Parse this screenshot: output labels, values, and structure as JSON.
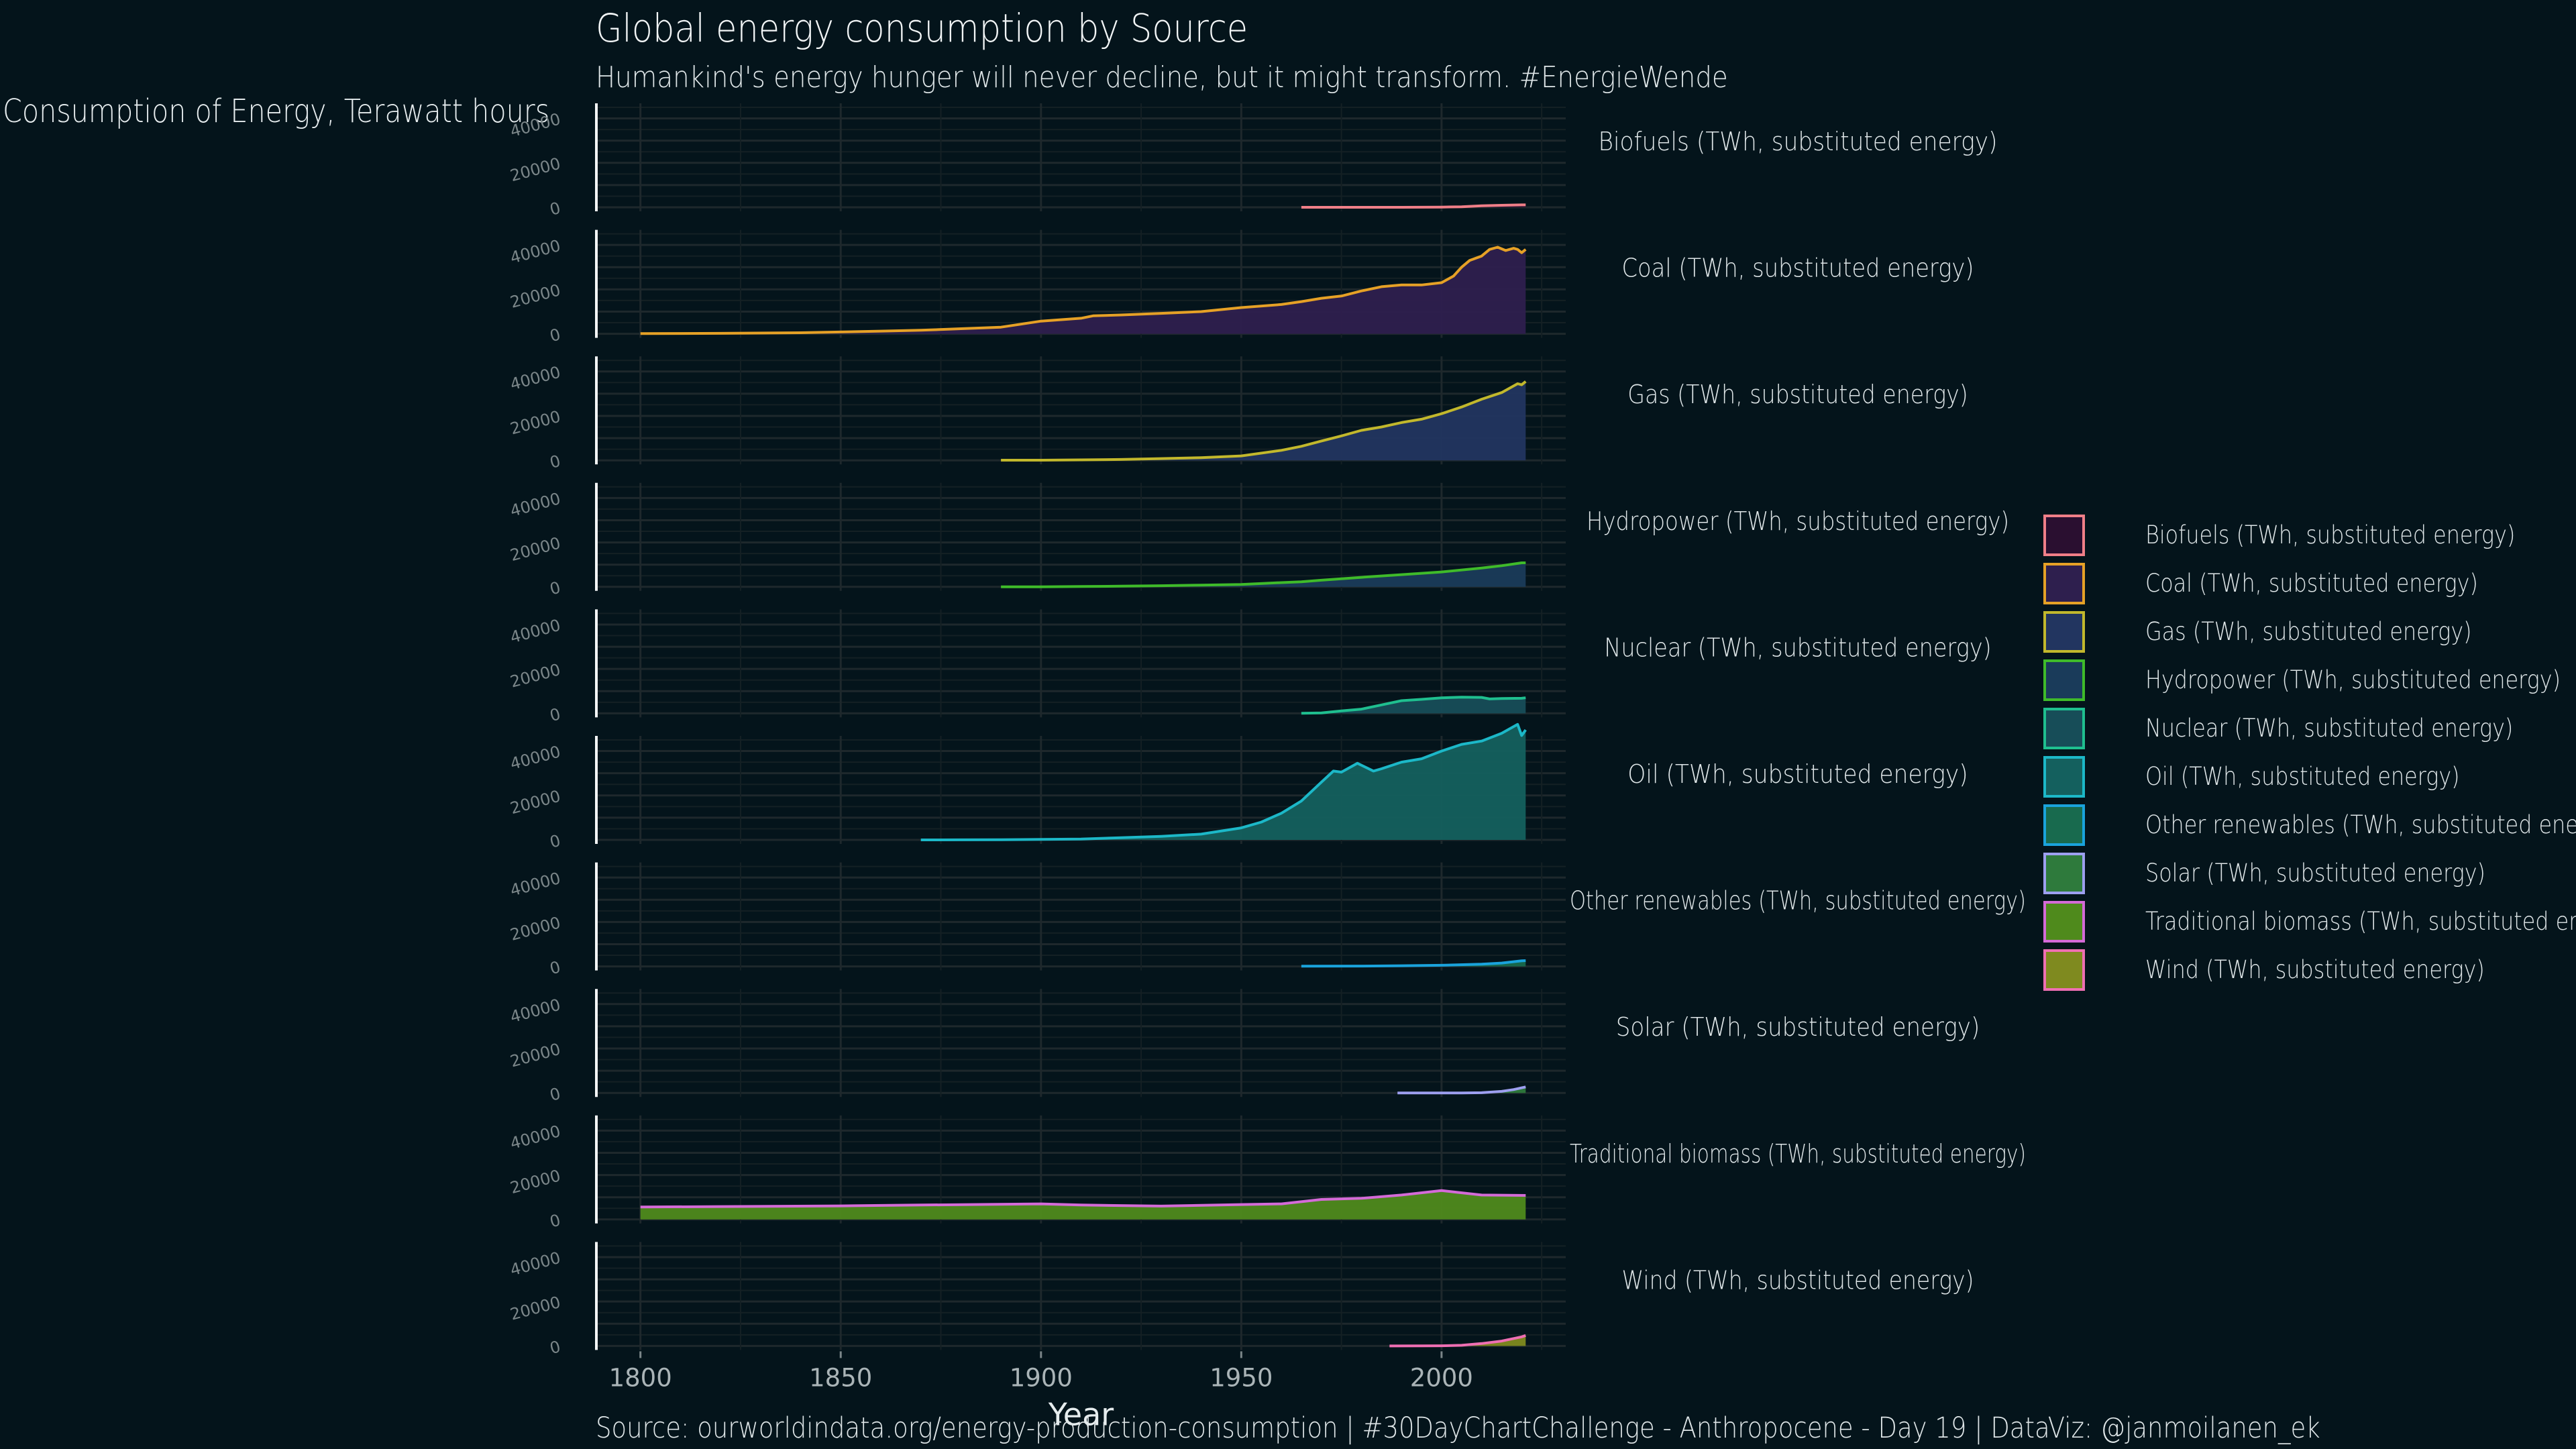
{
  "chart_data": {
    "type": "area",
    "title": "Global energy consumption by Source",
    "subtitle": "Humankind's energy hunger will never decline, but it might transform. #EnergieWende",
    "ylabel": "Consumption of Energy, Terawatt hours",
    "xlabel": "Year",
    "caption": "Source: ourworldindata.org/energy-production-consumption | #30DayChartChallenge - Anthropocene - Day 19  |  DataViz: @janmoilanen_ek",
    "xlim": [
      1789,
      2031
    ],
    "ylim": [
      0,
      45000
    ],
    "x_ticks": [
      1800,
      1850,
      1900,
      1950,
      2000
    ],
    "y_ticks": [
      0,
      20000,
      40000
    ],
    "facets": "stacked vertically, shared x axis",
    "grid": true,
    "legend_position": "right",
    "series": [
      {
        "name": "Biofuels (TWh, substituted energy)",
        "line_color": "#f07f88",
        "fill_color": "#2a0f30",
        "points": [
          [
            1965,
            0
          ],
          [
            1980,
            0
          ],
          [
            1990,
            0
          ],
          [
            2000,
            100
          ],
          [
            2005,
            250
          ],
          [
            2010,
            700
          ],
          [
            2015,
            900
          ],
          [
            2020,
            1100
          ],
          [
            2021,
            1100
          ]
        ]
      },
      {
        "name": "Coal (TWh, substituted energy)",
        "line_color": "#e6a126",
        "fill_color": "#2e1f4e",
        "points": [
          [
            1800,
            97
          ],
          [
            1820,
            200
          ],
          [
            1840,
            480
          ],
          [
            1860,
            1200
          ],
          [
            1870,
            1600
          ],
          [
            1880,
            2300
          ],
          [
            1890,
            3000
          ],
          [
            1900,
            5700
          ],
          [
            1910,
            7000
          ],
          [
            1913,
            8100
          ],
          [
            1920,
            8500
          ],
          [
            1930,
            9200
          ],
          [
            1940,
            10000
          ],
          [
            1950,
            11800
          ],
          [
            1960,
            13200
          ],
          [
            1965,
            14500
          ],
          [
            1970,
            16000
          ],
          [
            1975,
            17000
          ],
          [
            1980,
            19300
          ],
          [
            1985,
            21200
          ],
          [
            1990,
            22000
          ],
          [
            1995,
            22000
          ],
          [
            2000,
            23000
          ],
          [
            2003,
            26000
          ],
          [
            2005,
            30000
          ],
          [
            2007,
            33000
          ],
          [
            2010,
            35000
          ],
          [
            2012,
            38000
          ],
          [
            2014,
            39000
          ],
          [
            2016,
            37500
          ],
          [
            2018,
            38500
          ],
          [
            2019,
            38000
          ],
          [
            2020,
            36500
          ],
          [
            2021,
            38000
          ]
        ]
      },
      {
        "name": "Gas (TWh, substituted energy)",
        "line_color": "#c2b82c",
        "fill_color": "#223560",
        "points": [
          [
            1890,
            60
          ],
          [
            1900,
            70
          ],
          [
            1910,
            200
          ],
          [
            1920,
            400
          ],
          [
            1930,
            800
          ],
          [
            1940,
            1200
          ],
          [
            1950,
            2000
          ],
          [
            1960,
            4500
          ],
          [
            1965,
            6300
          ],
          [
            1970,
            8700
          ],
          [
            1975,
            11000
          ],
          [
            1980,
            13500
          ],
          [
            1985,
            15000
          ],
          [
            1990,
            17000
          ],
          [
            1995,
            18500
          ],
          [
            2000,
            21000
          ],
          [
            2005,
            24000
          ],
          [
            2010,
            27500
          ],
          [
            2015,
            30500
          ],
          [
            2018,
            33500
          ],
          [
            2019,
            34500
          ],
          [
            2020,
            34000
          ],
          [
            2021,
            35500
          ]
        ]
      },
      {
        "name": "Hydropower (TWh, substituted energy)",
        "line_color": "#3fbb2a",
        "fill_color": "#1a3b5a",
        "points": [
          [
            1890,
            5
          ],
          [
            1900,
            40
          ],
          [
            1910,
            150
          ],
          [
            1920,
            300
          ],
          [
            1930,
            500
          ],
          [
            1940,
            800
          ],
          [
            1950,
            1100
          ],
          [
            1960,
            1900
          ],
          [
            1965,
            2300
          ],
          [
            1970,
            3000
          ],
          [
            1980,
            4300
          ],
          [
            1990,
            5500
          ],
          [
            2000,
            6700
          ],
          [
            2010,
            8500
          ],
          [
            2015,
            9500
          ],
          [
            2020,
            10800
          ],
          [
            2021,
            10800
          ]
        ]
      },
      {
        "name": "Nuclear (TWh, substituted energy)",
        "line_color": "#1fbf8f",
        "fill_color": "#174d58",
        "points": [
          [
            1965,
            70
          ],
          [
            1970,
            200
          ],
          [
            1975,
            1100
          ],
          [
            1980,
            1900
          ],
          [
            1985,
            3800
          ],
          [
            1990,
            5700
          ],
          [
            1995,
            6300
          ],
          [
            2000,
            7000
          ],
          [
            2005,
            7300
          ],
          [
            2010,
            7200
          ],
          [
            2012,
            6500
          ],
          [
            2015,
            6700
          ],
          [
            2020,
            6800
          ],
          [
            2021,
            7000
          ]
        ]
      },
      {
        "name": "Oil (TWh, substituted energy)",
        "line_color": "#1cb8c8",
        "fill_color": "#14605e",
        "points": [
          [
            1870,
            3
          ],
          [
            1880,
            30
          ],
          [
            1890,
            100
          ],
          [
            1900,
            200
          ],
          [
            1910,
            400
          ],
          [
            1920,
            1000
          ],
          [
            1930,
            1600
          ],
          [
            1940,
            2600
          ],
          [
            1950,
            5400
          ],
          [
            1955,
            8000
          ],
          [
            1960,
            12000
          ],
          [
            1965,
            17500
          ],
          [
            1970,
            26000
          ],
          [
            1973,
            31000
          ],
          [
            1975,
            30500
          ],
          [
            1979,
            34500
          ],
          [
            1983,
            31000
          ],
          [
            1985,
            32000
          ],
          [
            1990,
            35000
          ],
          [
            1995,
            36500
          ],
          [
            2000,
            40000
          ],
          [
            2005,
            43000
          ],
          [
            2010,
            44500
          ],
          [
            2015,
            48000
          ],
          [
            2019,
            52000
          ],
          [
            2020,
            47000
          ],
          [
            2021,
            49500
          ]
        ]
      },
      {
        "name": "Other renewables (TWh, substituted energy)",
        "line_color": "#1aa3dc",
        "fill_color": "#186a4e",
        "points": [
          [
            1965,
            100
          ],
          [
            1980,
            150
          ],
          [
            1990,
            300
          ],
          [
            2000,
            500
          ],
          [
            2010,
            1000
          ],
          [
            2015,
            1500
          ],
          [
            2020,
            2500
          ],
          [
            2021,
            2600
          ]
        ]
      },
      {
        "name": "Solar (TWh, substituted energy)",
        "line_color": "#9d9ff0",
        "fill_color": "#2e7a3c",
        "points": [
          [
            1989,
            1
          ],
          [
            2000,
            3
          ],
          [
            2005,
            15
          ],
          [
            2010,
            100
          ],
          [
            2015,
            700
          ],
          [
            2018,
            1500
          ],
          [
            2020,
            2300
          ],
          [
            2021,
            2700
          ]
        ]
      },
      {
        "name": "Traditional biomass (TWh, substituted energy)",
        "line_color": "#d46ad8",
        "fill_color": "#4f8a1c",
        "points": [
          [
            1800,
            5600
          ],
          [
            1820,
            5800
          ],
          [
            1850,
            6100
          ],
          [
            1870,
            6500
          ],
          [
            1900,
            7000
          ],
          [
            1910,
            6500
          ],
          [
            1930,
            6000
          ],
          [
            1950,
            6700
          ],
          [
            1960,
            7000
          ],
          [
            1970,
            9000
          ],
          [
            1980,
            9500
          ],
          [
            1990,
            11000
          ],
          [
            2000,
            13000
          ],
          [
            2010,
            11000
          ],
          [
            2021,
            10800
          ]
        ]
      },
      {
        "name": "Wind (TWh, substituted energy)",
        "line_color": "#ef6fb3",
        "fill_color": "#7f8a1f",
        "points": [
          [
            1987,
            0
          ],
          [
            1995,
            20
          ],
          [
            2000,
            90
          ],
          [
            2005,
            300
          ],
          [
            2010,
            1100
          ],
          [
            2015,
            2200
          ],
          [
            2020,
            4100
          ],
          [
            2021,
            4700
          ]
        ]
      }
    ]
  }
}
